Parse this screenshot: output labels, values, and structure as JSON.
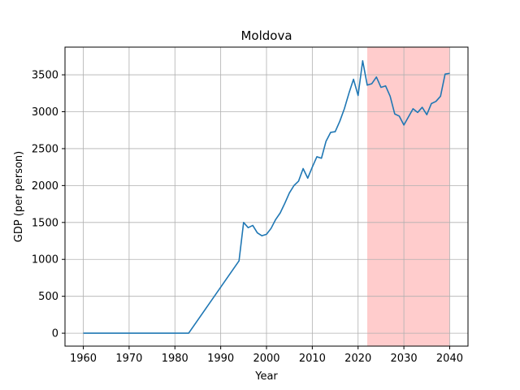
{
  "chart_data": {
    "type": "line",
    "title": "Moldova",
    "xlabel": "Year",
    "ylabel": "GDP (per person)",
    "xlim": [
      1956,
      2044
    ],
    "ylim": [
      -175,
      3875
    ],
    "xticks": [
      1960,
      1970,
      1980,
      1990,
      2000,
      2010,
      2020,
      2030,
      2040
    ],
    "yticks": [
      0,
      500,
      1000,
      1500,
      2000,
      2500,
      3000,
      3500
    ],
    "grid": true,
    "colors": {
      "line": "#1f77b4",
      "band": "#ffcccc",
      "grid": "#b0b0b0"
    },
    "shaded_region": {
      "x_start": 2022,
      "x_end": 2040
    },
    "series": [
      {
        "points": [
          [
            1960,
            0
          ],
          [
            1965,
            0
          ],
          [
            1970,
            0
          ],
          [
            1975,
            0
          ],
          [
            1980,
            0
          ],
          [
            1983,
            0
          ],
          [
            1994,
            980
          ],
          [
            1995,
            1500
          ],
          [
            1996,
            1430
          ],
          [
            1997,
            1460
          ],
          [
            1998,
            1360
          ],
          [
            1999,
            1320
          ],
          [
            2000,
            1340
          ],
          [
            2001,
            1420
          ],
          [
            2002,
            1540
          ],
          [
            2003,
            1630
          ],
          [
            2004,
            1760
          ],
          [
            2005,
            1900
          ],
          [
            2006,
            2000
          ],
          [
            2007,
            2060
          ],
          [
            2008,
            2230
          ],
          [
            2009,
            2100
          ],
          [
            2010,
            2250
          ],
          [
            2011,
            2390
          ],
          [
            2012,
            2370
          ],
          [
            2013,
            2600
          ],
          [
            2014,
            2720
          ],
          [
            2015,
            2730
          ],
          [
            2016,
            2870
          ],
          [
            2017,
            3040
          ],
          [
            2018,
            3250
          ],
          [
            2019,
            3440
          ],
          [
            2020,
            3220
          ],
          [
            2021,
            3690
          ],
          [
            2022,
            3360
          ],
          [
            2023,
            3380
          ],
          [
            2024,
            3470
          ],
          [
            2025,
            3330
          ],
          [
            2026,
            3350
          ],
          [
            2027,
            3210
          ],
          [
            2028,
            2970
          ],
          [
            2029,
            2940
          ],
          [
            2030,
            2820
          ],
          [
            2031,
            2930
          ],
          [
            2032,
            3040
          ],
          [
            2033,
            2990
          ],
          [
            2034,
            3060
          ],
          [
            2035,
            2960
          ],
          [
            2036,
            3110
          ],
          [
            2037,
            3140
          ],
          [
            2038,
            3210
          ],
          [
            2039,
            3510
          ],
          [
            2040,
            3520
          ]
        ]
      }
    ]
  }
}
